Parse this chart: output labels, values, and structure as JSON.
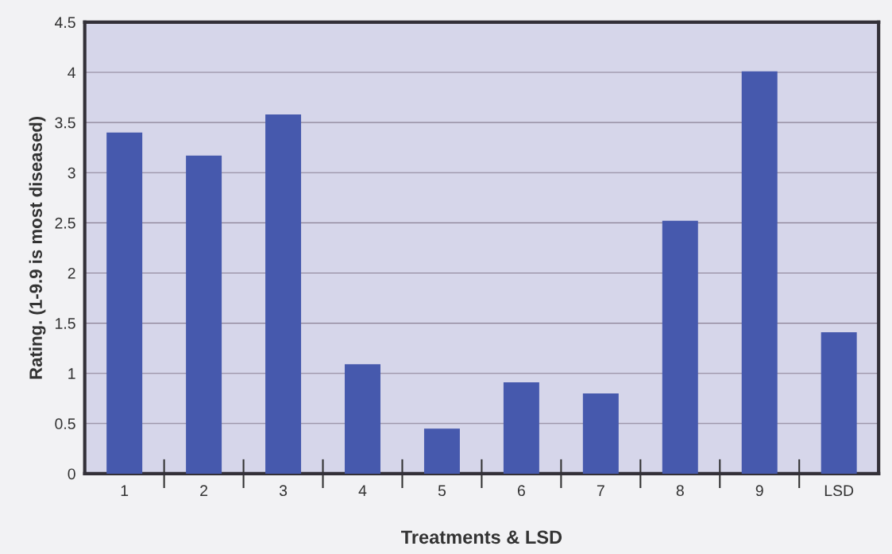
{
  "chart_data": {
    "type": "bar",
    "xlabel": "Treatments & LSD",
    "ylabel": "Rating. (1-9.9 is most diseased)",
    "categories": [
      "1",
      "2",
      "3",
      "4",
      "5",
      "6",
      "7",
      "8",
      "9",
      "LSD"
    ],
    "values": [
      3.4,
      3.17,
      3.58,
      1.09,
      0.45,
      0.91,
      0.8,
      2.52,
      4.01,
      1.41
    ],
    "color": "#4659ad",
    "ylim": [
      0,
      4.5
    ],
    "yticks": [
      0,
      0.5,
      1,
      1.5,
      2,
      2.5,
      3,
      3.5,
      4,
      4.5
    ],
    "grid": "y"
  }
}
